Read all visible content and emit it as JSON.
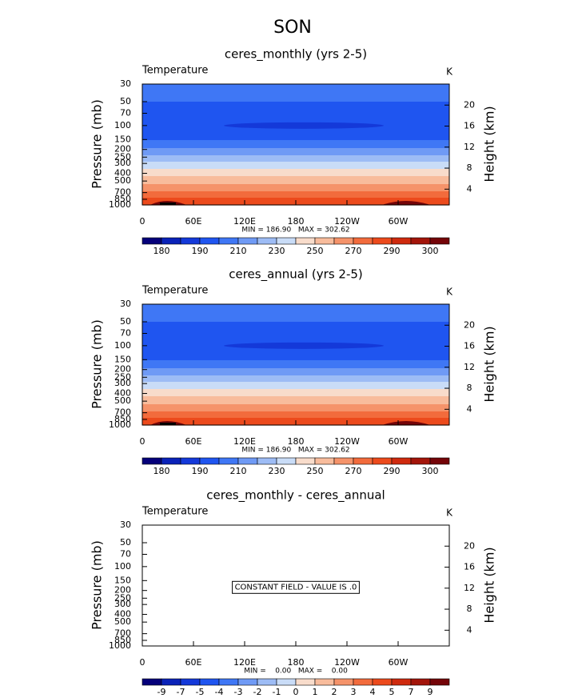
{
  "title": "SON",
  "chart_data": [
    {
      "type": "contour",
      "title": "ceres_monthly (yrs 2-5)",
      "left_label": "Temperature",
      "right_label": "K",
      "y_label": "Pressure (mb)",
      "y2_label": "Height (km)",
      "stats": "MIN = 186.90   MAX = 302.62",
      "xlim": [
        0,
        360
      ],
      "xticks": [
        0,
        {
          "value": 60,
          "label": "60E"
        },
        {
          "value": 120,
          "label": "120E"
        },
        180,
        {
          "value": 240,
          "label": "120W"
        },
        {
          "value": 300,
          "label": "60W"
        }
      ],
      "ylim": [
        1000,
        30
      ],
      "log_y": true,
      "yticks": [
        30,
        50,
        70,
        100,
        150,
        200,
        250,
        300,
        400,
        500,
        700,
        850,
        1000
      ],
      "y2lim": [
        1,
        24
      ],
      "y2ticks": [
        4,
        8,
        12,
        16,
        20
      ],
      "profile": {
        "pressure": [
          30,
          50,
          70,
          100,
          150,
          200,
          250,
          300,
          400,
          500,
          700,
          850,
          1000
        ],
        "values": [
          207,
          200,
          196,
          192,
          199,
          212,
          222,
          233,
          246,
          256,
          272,
          283,
          289
        ]
      },
      "colorbar": {
        "colors": [
          "#05007a",
          "#0a22b8",
          "#1439d9",
          "#1f55f0",
          "#3f77f5",
          "#6f9af5",
          "#9dbcf5",
          "#c9dcf7",
          "#f8dccb",
          "#f8bc9c",
          "#f5936a",
          "#f26b3c",
          "#ec4a1c",
          "#cf2a0e",
          "#a3150a",
          "#740408"
        ],
        "levels": [
          180,
          185,
          190,
          200,
          210,
          220,
          230,
          240,
          250,
          260,
          270,
          280,
          290,
          295,
          300
        ],
        "ticks": [
          180,
          190,
          210,
          230,
          250,
          270,
          290,
          300
        ]
      }
    },
    {
      "type": "contour",
      "title": "ceres_annual (yrs 2-5)",
      "left_label": "Temperature",
      "right_label": "K",
      "y_label": "Pressure (mb)",
      "y2_label": "Height (km)",
      "stats": "MIN = 186.90   MAX = 302.62",
      "xlim": [
        0,
        360
      ],
      "xticks": [
        0,
        {
          "value": 60,
          "label": "60E"
        },
        {
          "value": 120,
          "label": "120E"
        },
        180,
        {
          "value": 240,
          "label": "120W"
        },
        {
          "value": 300,
          "label": "60W"
        }
      ],
      "ylim": [
        1000,
        30
      ],
      "log_y": true,
      "yticks": [
        30,
        50,
        70,
        100,
        150,
        200,
        250,
        300,
        400,
        500,
        700,
        850,
        1000
      ],
      "y2lim": [
        1,
        24
      ],
      "y2ticks": [
        4,
        8,
        12,
        16,
        20
      ],
      "profile": {
        "pressure": [
          30,
          50,
          70,
          100,
          150,
          200,
          250,
          300,
          400,
          500,
          700,
          850,
          1000
        ],
        "values": [
          207,
          200,
          196,
          192,
          199,
          212,
          222,
          233,
          246,
          256,
          272,
          283,
          289
        ]
      },
      "colorbar": {
        "colors": [
          "#05007a",
          "#0a22b8",
          "#1439d9",
          "#1f55f0",
          "#3f77f5",
          "#6f9af5",
          "#9dbcf5",
          "#c9dcf7",
          "#f8dccb",
          "#f8bc9c",
          "#f5936a",
          "#f26b3c",
          "#ec4a1c",
          "#cf2a0e",
          "#a3150a",
          "#740408"
        ],
        "levels": [
          180,
          185,
          190,
          200,
          210,
          220,
          230,
          240,
          250,
          260,
          270,
          280,
          290,
          295,
          300
        ],
        "ticks": [
          180,
          190,
          210,
          230,
          250,
          270,
          290,
          300
        ]
      }
    },
    {
      "type": "contour",
      "title": "ceres_monthly - ceres_annual",
      "left_label": "Temperature",
      "right_label": "K",
      "y_label": "Pressure (mb)",
      "y2_label": "Height (km)",
      "stats": "MIN =    0.00   MAX =    0.00",
      "note": "CONSTANT FIELD - VALUE IS .0",
      "xlim": [
        0,
        360
      ],
      "xticks": [
        0,
        {
          "value": 60,
          "label": "60E"
        },
        {
          "value": 120,
          "label": "120E"
        },
        180,
        {
          "value": 240,
          "label": "120W"
        },
        {
          "value": 300,
          "label": "60W"
        }
      ],
      "ylim": [
        1000,
        30
      ],
      "log_y": true,
      "yticks": [
        30,
        50,
        70,
        100,
        150,
        200,
        250,
        300,
        400,
        500,
        700,
        850,
        1000
      ],
      "y2lim": [
        1,
        24
      ],
      "y2ticks": [
        4,
        8,
        12,
        16,
        20
      ],
      "colorbar": {
        "colors": [
          "#05007a",
          "#0a22b8",
          "#1439d9",
          "#1f55f0",
          "#3f77f5",
          "#6f9af5",
          "#9dbcf5",
          "#c9dcf7",
          "#f8dccb",
          "#f8bc9c",
          "#f5936a",
          "#f26b3c",
          "#ec4a1c",
          "#cf2a0e",
          "#a3150a",
          "#740408"
        ],
        "levels": [
          -9,
          -7,
          -5,
          -4,
          -3,
          -2,
          -1,
          0,
          1,
          2,
          3,
          4,
          5,
          7,
          9
        ],
        "ticks": [
          -9,
          -7,
          -5,
          -4,
          -3,
          -2,
          -1,
          0,
          1,
          2,
          3,
          4,
          5,
          7,
          9
        ]
      }
    }
  ]
}
